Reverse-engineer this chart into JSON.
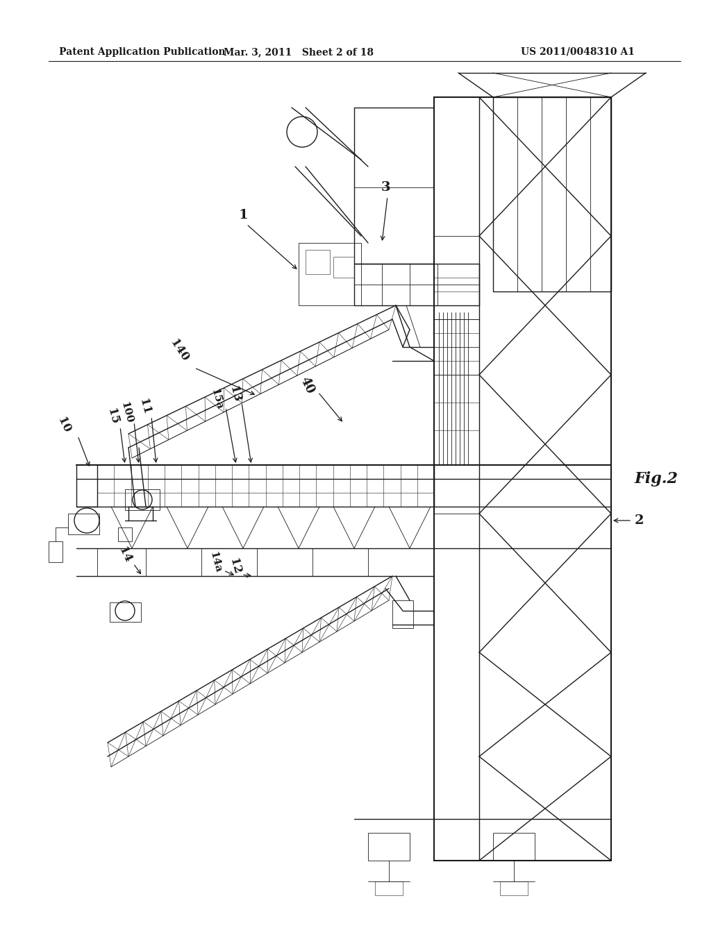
{
  "background_color": "#ffffff",
  "header_left": "Patent Application Publication",
  "header_center": "Mar. 3, 2011  Sheet 2 of 18",
  "header_right": "US 2011/0048310 A1",
  "fig_label": "Fig.2",
  "line_color": "#1a1a1a",
  "lw_thick": 1.5,
  "lw_med": 1.0,
  "lw_thin": 0.6,
  "lw_hair": 0.4
}
